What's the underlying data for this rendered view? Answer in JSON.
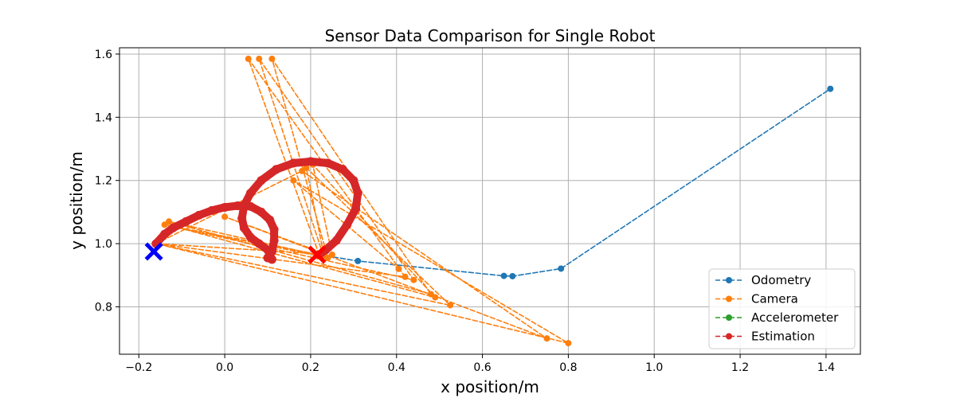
{
  "chart_data": {
    "type": "line",
    "title": "Sensor Data Comparison for Single Robot",
    "xlabel": "x position/m",
    "ylabel": "y position/m",
    "xlim": [
      -0.245,
      1.48
    ],
    "ylim": [
      0.65,
      1.62
    ],
    "xticks": [
      -0.2,
      0.0,
      0.2,
      0.4,
      0.6,
      0.8,
      1.0,
      1.2,
      1.4
    ],
    "yticks": [
      0.8,
      1.0,
      1.2,
      1.4,
      1.6
    ],
    "xtick_labels": [
      "−0.2",
      "0.0",
      "0.2",
      "0.4",
      "0.6",
      "0.8",
      "1.0",
      "1.2",
      "1.4"
    ],
    "ytick_labels": [
      "0.8",
      "1.0",
      "1.2",
      "1.4",
      "1.6"
    ],
    "grid": true,
    "legend_position": "lower-right",
    "series": [
      {
        "name": "Odometry",
        "color": "#1f77b4",
        "style": "dashed-marker",
        "points": [
          [
            0.22,
            0.965
          ],
          [
            0.31,
            0.945
          ],
          [
            0.65,
            0.898
          ],
          [
            0.67,
            0.897
          ],
          [
            0.783,
            0.921
          ],
          [
            1.41,
            1.49
          ]
        ]
      },
      {
        "name": "Camera",
        "color": "#ff7f0e",
        "style": "dashed-marker",
        "points": [
          [
            -0.16,
            1.0
          ],
          [
            0.42,
            0.895
          ],
          [
            0.055,
            1.585
          ],
          [
            0.22,
            0.965
          ],
          [
            -0.14,
            1.06
          ],
          [
            0.44,
            0.885
          ],
          [
            0.08,
            1.585
          ],
          [
            0.23,
            0.96
          ],
          [
            -0.13,
            1.07
          ],
          [
            0.48,
            0.84
          ],
          [
            0.11,
            1.585
          ],
          [
            0.24,
            0.955
          ],
          [
            -0.12,
            1.055
          ],
          [
            0.49,
            0.83
          ],
          [
            0.205,
            1.25
          ],
          [
            0.25,
            0.965
          ],
          [
            -0.16,
            1.0
          ],
          [
            0.525,
            0.805
          ],
          [
            0.19,
            1.24
          ],
          [
            0.23,
            0.97
          ],
          [
            0.0,
            1.085
          ],
          [
            0.75,
            0.7
          ],
          [
            0.18,
            1.23
          ],
          [
            -0.16,
            1.0
          ],
          [
            0.8,
            0.685
          ],
          [
            0.16,
            1.2
          ],
          [
            0.405,
            0.92
          ]
        ]
      },
      {
        "name": "Accelerometer",
        "color": "#2ca02c",
        "style": "dashed-marker",
        "points": []
      },
      {
        "name": "Estimation",
        "color": "#d62728",
        "style": "dashed-marker",
        "points": [
          [
            -0.16,
            1.0
          ],
          [
            -0.14,
            1.03
          ],
          [
            -0.12,
            1.05
          ],
          [
            -0.09,
            1.07
          ],
          [
            -0.06,
            1.09
          ],
          [
            -0.03,
            1.105
          ],
          [
            0.0,
            1.115
          ],
          [
            0.03,
            1.12
          ],
          [
            0.06,
            1.118
          ],
          [
            0.085,
            1.1
          ],
          [
            0.105,
            1.075
          ],
          [
            0.115,
            1.045
          ],
          [
            0.115,
            1.01
          ],
          [
            0.11,
            0.975
          ],
          [
            0.1,
            0.955
          ],
          [
            0.11,
            0.95
          ],
          [
            0.1,
            0.98
          ],
          [
            0.08,
            1.0
          ],
          [
            0.06,
            1.02
          ],
          [
            0.045,
            1.05
          ],
          [
            0.04,
            1.08
          ],
          [
            0.045,
            1.12
          ],
          [
            0.06,
            1.16
          ],
          [
            0.085,
            1.2
          ],
          [
            0.12,
            1.235
          ],
          [
            0.16,
            1.255
          ],
          [
            0.2,
            1.26
          ],
          [
            0.24,
            1.255
          ],
          [
            0.275,
            1.235
          ],
          [
            0.3,
            1.2
          ],
          [
            0.31,
            1.16
          ],
          [
            0.305,
            1.11
          ],
          [
            0.285,
            1.06
          ],
          [
            0.26,
            1.01
          ],
          [
            0.235,
            0.98
          ],
          [
            0.22,
            0.965
          ]
        ]
      }
    ],
    "markers": [
      {
        "name": "start",
        "x": -0.165,
        "y": 0.975,
        "color": "#0000ff",
        "symbol": "X"
      },
      {
        "name": "end",
        "x": 0.215,
        "y": 0.965,
        "color": "#ff0000",
        "symbol": "X"
      }
    ]
  }
}
